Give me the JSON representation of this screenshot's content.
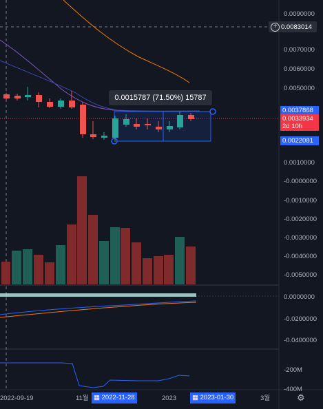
{
  "price_axis": {
    "main": [
      "0.0090000",
      "0.0070000",
      "0.0060000",
      "0.0050000",
      "0.0010000",
      "-0.0000000",
      "-0.0010000",
      "-0.0020000",
      "-0.0030000",
      "-0.0040000",
      "-0.0050000"
    ],
    "osc1": [
      "0.0000000",
      "-0.0200000",
      "-0.0400000"
    ],
    "osc2": [
      "-200M",
      "-400M"
    ]
  },
  "crosshair": {
    "price": "0.0083014",
    "icon": "plus-circle-icon"
  },
  "tags": {
    "upper": "0.0037868",
    "current_price": "0.0033934",
    "countdown": "2d 10h",
    "lower": "0.0022081"
  },
  "measure_tool": {
    "label": "0.0015787 (71.50%) 15787"
  },
  "time_axis": {
    "start": "2022-09-19",
    "month1": "11월",
    "tag1": "2022-11-28",
    "year": "2023",
    "tag2": "2023-01-30",
    "month2": "3월",
    "tag_icon": "calendar-icon"
  },
  "colors": {
    "background": "#131722",
    "up": "#26a69a",
    "down": "#ef5350",
    "accent": "#2962ff",
    "ma_orange": "#f57c00",
    "ma_purple": "#7e57c2"
  }
}
